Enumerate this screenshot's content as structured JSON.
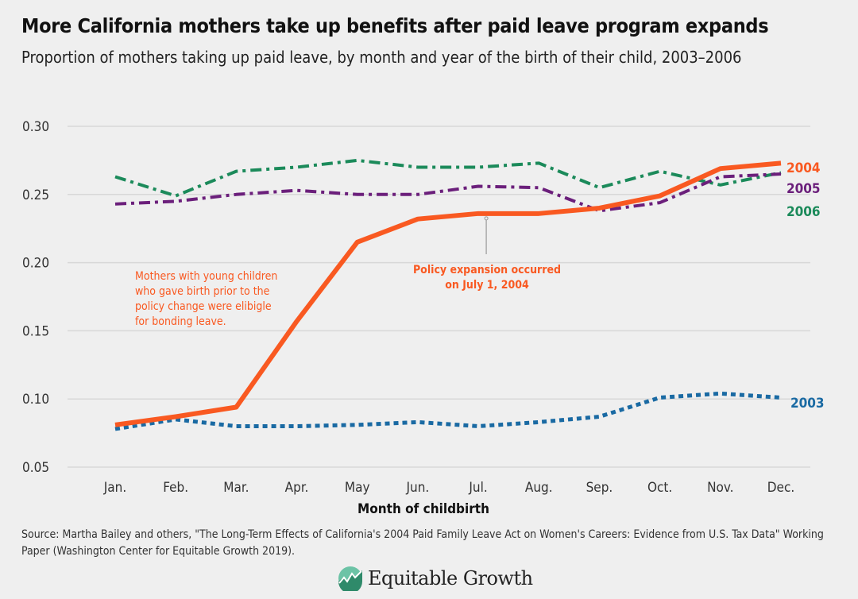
{
  "header": {
    "title": "More California mothers take up benefits after paid leave program expands",
    "subtitle": "Proportion of mothers taking up paid leave, by month and year of the birth of their child, 2003–2006"
  },
  "chart_data": {
    "type": "line",
    "title": "More California mothers take up benefits after paid leave program expands",
    "xlabel": "Month of childbirth",
    "ylabel": "",
    "categories": [
      "Jan.",
      "Feb.",
      "Mar.",
      "Apr.",
      "May",
      "Jun.",
      "Jul.",
      "Aug.",
      "Sep.",
      "Oct.",
      "Nov.",
      "Dec."
    ],
    "ylim": [
      0.05,
      0.3
    ],
    "yticks": [
      "0.30",
      "0.25",
      "0.20",
      "0.15",
      "0.10",
      "0.05"
    ],
    "grid": true,
    "legend": "direct labels at right",
    "series": [
      {
        "name": "2003",
        "color": "#1a6aa3",
        "style": "dotted",
        "values": [
          0.078,
          0.085,
          0.08,
          0.08,
          0.081,
          0.083,
          0.08,
          0.083,
          0.087,
          0.101,
          0.104,
          0.101
        ]
      },
      {
        "name": "2004",
        "color": "#f95921",
        "style": "solid",
        "values": [
          0.081,
          0.087,
          0.094,
          0.157,
          0.215,
          0.232,
          0.236,
          0.236,
          0.24,
          0.249,
          0.269,
          0.273
        ]
      },
      {
        "name": "2005",
        "color": "#6b1f7b",
        "style": "dashdot",
        "values": [
          0.243,
          0.245,
          0.25,
          0.253,
          0.25,
          0.25,
          0.256,
          0.255,
          0.238,
          0.244,
          0.263,
          0.265
        ]
      },
      {
        "name": "2006",
        "color": "#1b8a5a",
        "style": "dashdot",
        "values": [
          0.263,
          0.249,
          0.267,
          0.27,
          0.275,
          0.27,
          0.27,
          0.273,
          0.255,
          0.267,
          0.257,
          0.266
        ]
      }
    ],
    "annotations": [
      {
        "text_lines": [
          "Mothers with young children",
          "who gave birth prior to the",
          "policy change were elibigle",
          "for bonding leave."
        ],
        "color": "#f95921"
      },
      {
        "text_lines": [
          "Policy expansion occurred",
          "on July 1, 2004"
        ],
        "color": "#f95921",
        "month": "Jul."
      }
    ]
  },
  "footer": {
    "source": "Source: Martha Bailey and others, \"The Long-Term Effects of California's 2004 Paid Family Leave Act on Women's Careers: Evidence from U.S. Tax Data\" Working Paper (Washington Center for Equitable Growth 2019).",
    "logo_text": "Equitable Growth"
  }
}
